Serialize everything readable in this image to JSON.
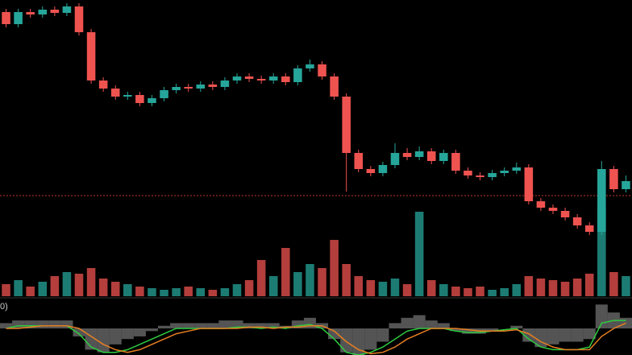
{
  "chart_data": {
    "type": "candlestick",
    "up_color": "#26a69a",
    "down_color": "#ef5350",
    "ylim": [
      0,
      300
    ],
    "hline": 57,
    "hline_color": "#c0392b",
    "open": [
      285,
      270,
      285,
      282,
      288,
      284,
      292,
      260,
      200,
      190,
      180,
      182,
      172,
      178,
      188,
      192,
      190,
      195,
      192,
      200,
      205,
      202,
      200,
      205,
      198,
      215,
      220,
      205,
      180,
      110,
      90,
      85,
      95,
      110,
      105,
      112,
      100,
      110,
      88,
      82,
      80,
      85,
      88,
      92,
      50,
      42,
      38,
      30,
      20,
      12,
      90,
      65
    ],
    "high": [
      289,
      289,
      289,
      292,
      292,
      296,
      296,
      264,
      204,
      194,
      186,
      186,
      182,
      192,
      196,
      196,
      199,
      199,
      204,
      209,
      209,
      206,
      209,
      209,
      219,
      226,
      224,
      209,
      184,
      114,
      94,
      99,
      122,
      116,
      118,
      116,
      114,
      114,
      92,
      86,
      89,
      92,
      98,
      96,
      54,
      46,
      42,
      34,
      24,
      100,
      94,
      82
    ],
    "low": [
      266,
      266,
      278,
      278,
      280,
      280,
      256,
      196,
      186,
      176,
      176,
      168,
      168,
      174,
      184,
      186,
      186,
      188,
      188,
      196,
      198,
      196,
      196,
      194,
      194,
      211,
      201,
      176,
      62,
      86,
      81,
      81,
      91,
      101,
      101,
      96,
      96,
      84,
      78,
      76,
      76,
      81,
      84,
      46,
      38,
      34,
      26,
      16,
      8,
      8,
      61,
      61
    ],
    "close": [
      270,
      285,
      282,
      288,
      284,
      292,
      260,
      200,
      190,
      180,
      182,
      172,
      178,
      188,
      192,
      190,
      195,
      192,
      200,
      205,
      202,
      200,
      205,
      198,
      215,
      220,
      205,
      180,
      110,
      90,
      85,
      95,
      110,
      105,
      112,
      100,
      110,
      88,
      82,
      80,
      85,
      88,
      92,
      50,
      42,
      38,
      30,
      20,
      12,
      90,
      65,
      75
    ],
    "volume": [
      15,
      20,
      12,
      18,
      25,
      30,
      28,
      35,
      22,
      18,
      15,
      12,
      10,
      8,
      10,
      12,
      10,
      8,
      10,
      15,
      20,
      45,
      25,
      60,
      30,
      40,
      35,
      70,
      40,
      25,
      20,
      18,
      22,
      15,
      105,
      20,
      15,
      12,
      10,
      12,
      8,
      10,
      15,
      25,
      22,
      20,
      18,
      22,
      28,
      110,
      30,
      25
    ],
    "vlim": [
      0,
      120
    ],
    "indicator_label": "0)",
    "indicator": {
      "ylim": [
        -1,
        1
      ],
      "histogram": [
        0.2,
        0.3,
        0.3,
        0.3,
        0.3,
        0.3,
        -0.3,
        -0.8,
        -0.9,
        -0.6,
        -0.4,
        -0.3,
        -0.1,
        0.1,
        0.2,
        0.2,
        0.2,
        0.2,
        0.3,
        0.3,
        0.2,
        0.2,
        0.2,
        0.1,
        0.3,
        0.4,
        0.2,
        -0.4,
        -0.9,
        -1,
        -0.8,
        -0.5,
        0.2,
        0.4,
        0.5,
        0.3,
        0.2,
        -0.1,
        -0.2,
        -0.2,
        -0.1,
        0,
        0.1,
        -0.5,
        -0.7,
        -0.6,
        -0.5,
        -0.5,
        -0.4,
        0.9,
        0.6,
        0.4
      ],
      "series": [
        {
          "color": "#2ecc40",
          "values": [
            0,
            0.1,
            0.1,
            0.1,
            0.1,
            0.1,
            -0.2,
            -0.7,
            -0.9,
            -0.9,
            -0.8,
            -0.6,
            -0.4,
            -0.2,
            0,
            0,
            0,
            0,
            0,
            0.05,
            0.05,
            0,
            0.05,
            0,
            0.1,
            0.15,
            0,
            -0.4,
            -0.9,
            -1,
            -0.9,
            -0.7,
            -0.4,
            -0.1,
            0,
            0,
            0,
            -0.1,
            -0.15,
            -0.15,
            -0.1,
            -0.05,
            0,
            -0.4,
            -0.7,
            -0.8,
            -0.8,
            -0.8,
            -0.7,
            0.2,
            0.3,
            0.3
          ]
        },
        {
          "color": "#e67e22",
          "values": [
            0,
            0,
            0.05,
            0.1,
            0.1,
            0.1,
            0,
            -0.3,
            -0.6,
            -0.8,
            -0.9,
            -0.8,
            -0.6,
            -0.4,
            -0.2,
            -0.1,
            0,
            0,
            0,
            0,
            0.05,
            0.05,
            0,
            0.05,
            0.05,
            0.1,
            0.1,
            -0.1,
            -0.5,
            -0.8,
            -0.95,
            -0.9,
            -0.7,
            -0.4,
            -0.2,
            0,
            0,
            0,
            -0.05,
            -0.1,
            -0.1,
            -0.1,
            -0.05,
            -0.2,
            -0.5,
            -0.7,
            -0.8,
            -0.8,
            -0.8,
            -0.3,
            0,
            0.2
          ]
        }
      ]
    }
  }
}
